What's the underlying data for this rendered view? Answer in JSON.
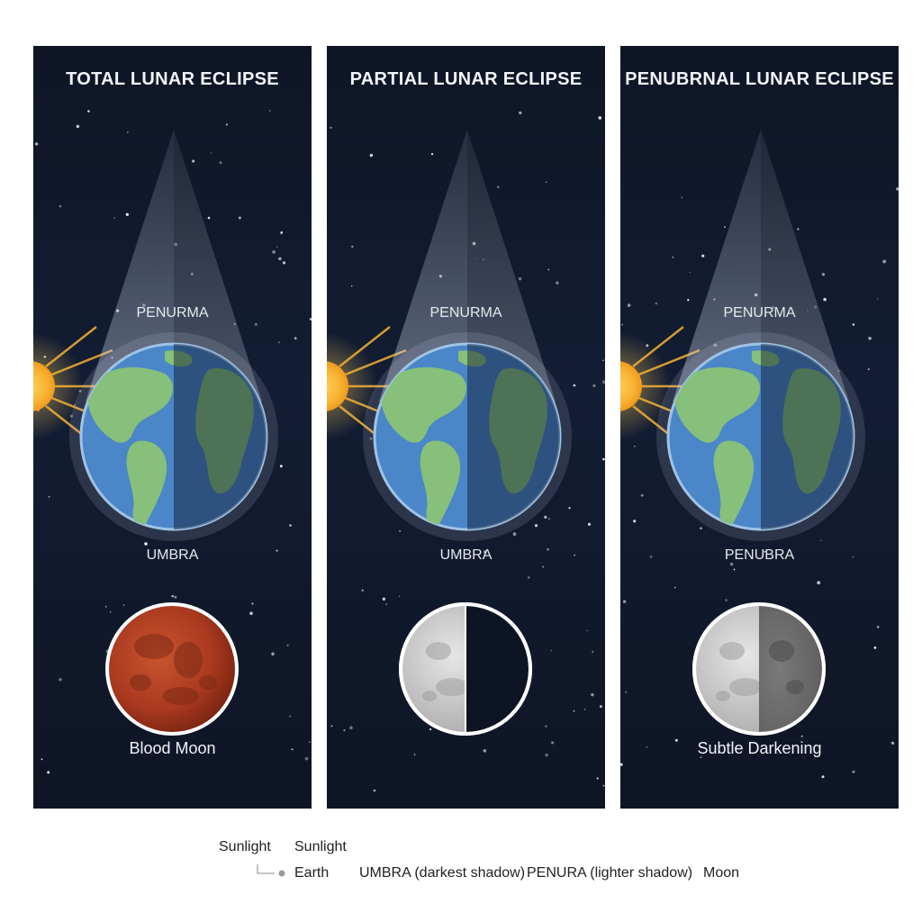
{
  "panels": [
    {
      "title": "TOTAL LUNAR ECLIPSE",
      "upper_label": "PENURMA",
      "lower_label": "UMBRA",
      "caption": "Blood Moon",
      "moon_style": "blood"
    },
    {
      "title": "PARTIAL LUNAR ECLIPSE",
      "upper_label": "PENURMA",
      "lower_label": "UMBRA",
      "caption": "",
      "moon_style": "half-dark"
    },
    {
      "title": "PENUBRNAL LUNAR ECLIPSE",
      "upper_label": "PENURMA",
      "lower_label": "PENUBRA",
      "caption": "Subtle Darkening",
      "moon_style": "half-gray"
    }
  ],
  "legend": {
    "sunlight_a": "Sunlight",
    "sunlight_b": "Sunlight",
    "earth": "Earth",
    "umbra": "UMBRA (darkest shadow)",
    "penumbra": "PENURA (lighter shadow)",
    "moon": "Moon"
  },
  "colors": {
    "sky": "#121b2f",
    "sun": "#f7b233",
    "ocean": "#4a86c8",
    "land": "#86c07a",
    "blood_moon": "#b8432a",
    "moon_gray": "#cfcfcf"
  }
}
